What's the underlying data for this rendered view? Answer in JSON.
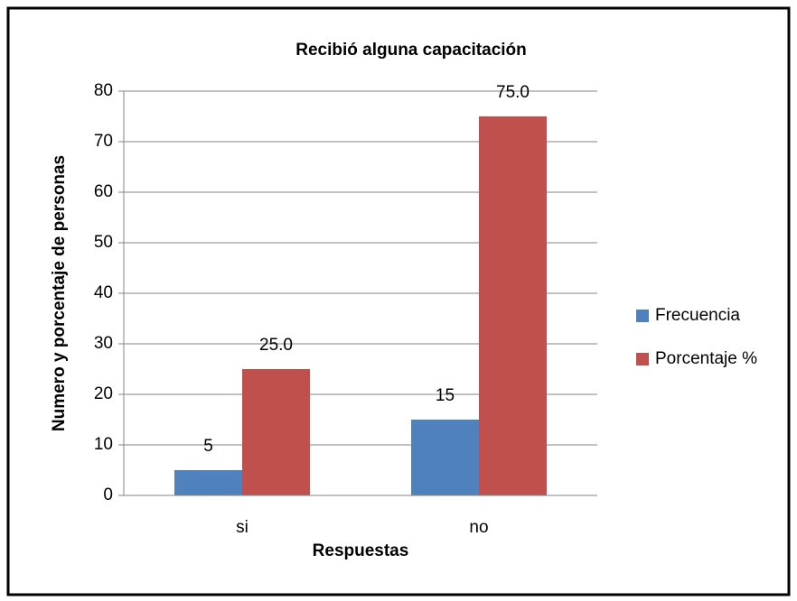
{
  "chart_data": {
    "type": "bar",
    "title": "Recibió alguna capacitación",
    "x_label": "Respuestas",
    "y_label": "Numero y porcentaje de personas",
    "categories": [
      "si",
      "no"
    ],
    "series": [
      {
        "name": "Frecuencia",
        "color": "#4f81bd",
        "values": [
          5,
          15
        ]
      },
      {
        "name": "Porcentaje %",
        "color": "#c0504d",
        "values": [
          25,
          75
        ],
        "value_labels": [
          "25.0",
          "75.0"
        ]
      }
    ],
    "ylim": [
      0,
      80
    ],
    "yticks": [
      0,
      10,
      20,
      30,
      40,
      50,
      60,
      70,
      80
    ],
    "grid": true,
    "legend": "right"
  }
}
